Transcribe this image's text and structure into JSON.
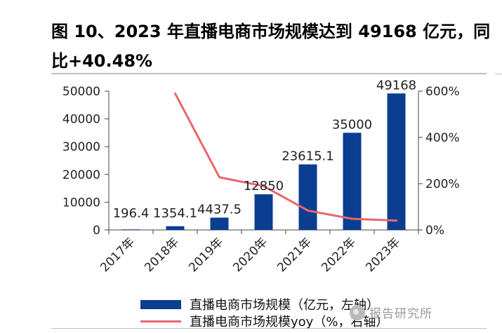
{
  "title": "图 10、2023 年直播电商市场规模达到 49168 亿元，同比+40.48%",
  "chart_data": {
    "type": "bar",
    "categories": [
      "2017年",
      "2018年",
      "2019年",
      "2020年",
      "2021年",
      "2022年",
      "2023年"
    ],
    "series": [
      {
        "name": "直播电商市场规模（亿元，左轴）",
        "type": "bar",
        "axis": "left",
        "color": "#0b3e91",
        "values": [
          196.4,
          1354.1,
          4437.5,
          12850,
          23615.1,
          35000,
          49168
        ],
        "labels": [
          "196.4",
          "1354.1",
          "4437.5",
          "12850",
          "23615.1",
          "35000",
          "49168"
        ]
      },
      {
        "name": "直播电商市场规模yoy（%，右轴）",
        "type": "line",
        "axis": "right",
        "color": "#e8676b",
        "values": [
          null,
          589.5,
          227.7,
          189.6,
          83.8,
          48.2,
          40.48
        ]
      }
    ],
    "y_left": {
      "min": 0,
      "max": 50000,
      "ticks": [
        "0",
        "10000",
        "20000",
        "30000",
        "40000",
        "50000"
      ]
    },
    "y_right": {
      "min": 0,
      "max": 600,
      "ticks": [
        "0%",
        "200%",
        "400%",
        "600%"
      ]
    }
  },
  "legend": {
    "bar_label": "直播电商市场规模（亿元，左轴）",
    "line_label": "直播电商市场规模yoy（%，右轴）"
  },
  "watermark": "报告研究所"
}
